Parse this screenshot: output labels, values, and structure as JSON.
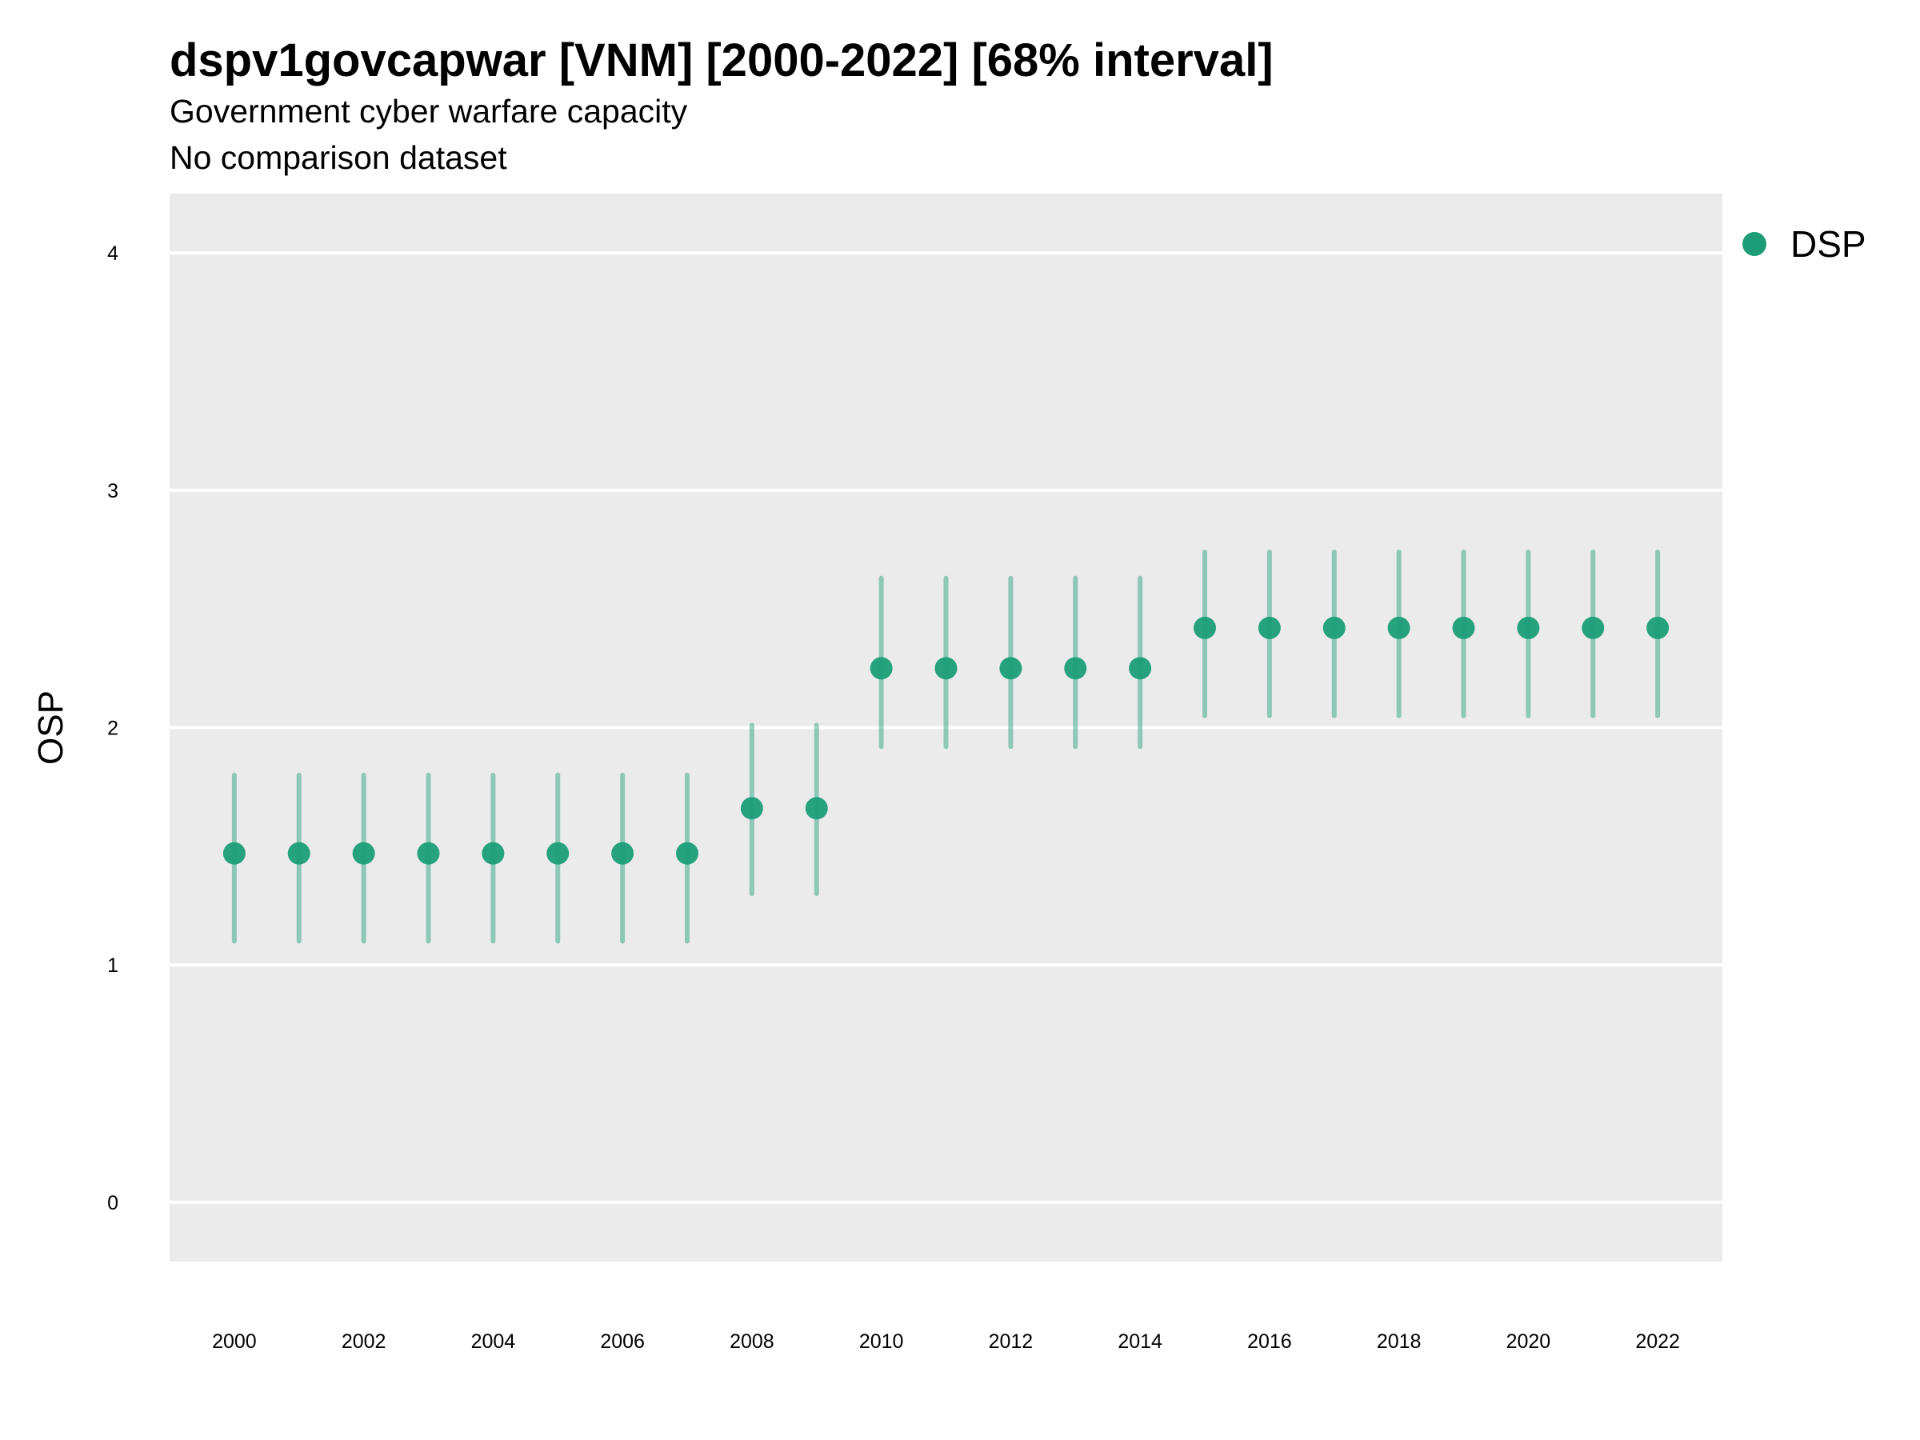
{
  "title": "dspv1govcapwar [VNM] [2000-2022] [68% interval]",
  "subtitle_lines": [
    "Government cyber warfare capacity",
    "No comparison dataset"
  ],
  "colors": {
    "panel": "#EBEBEB",
    "grid": "#FFFFFF",
    "point": "#1B9E77"
  },
  "legend": {
    "label": "DSP"
  },
  "chart_data": {
    "type": "scatter",
    "title": "dspv1govcapwar [VNM] [2000-2022] [68% interval]",
    "ylabel": "OSP",
    "xlabel": "",
    "ylim": [
      -0.25,
      4.25
    ],
    "y_ticks": [
      0,
      1,
      2,
      3,
      4
    ],
    "x_ticks": [
      2000,
      2002,
      2004,
      2006,
      2008,
      2010,
      2012,
      2014,
      2016,
      2018,
      2020,
      2022
    ],
    "xlim": [
      1999,
      2023
    ],
    "grid": true,
    "legend_position": "right",
    "series": [
      {
        "name": "DSP",
        "x": [
          2000,
          2001,
          2002,
          2003,
          2004,
          2005,
          2006,
          2007,
          2008,
          2009,
          2010,
          2011,
          2012,
          2013,
          2014,
          2015,
          2016,
          2017,
          2018,
          2019,
          2020,
          2021,
          2022
        ],
        "y": [
          1.47,
          1.47,
          1.47,
          1.47,
          1.47,
          1.47,
          1.47,
          1.47,
          1.66,
          1.66,
          2.25,
          2.25,
          2.25,
          2.25,
          2.25,
          2.42,
          2.42,
          2.42,
          2.42,
          2.42,
          2.42,
          2.42,
          2.42
        ],
        "lower": [
          1.1,
          1.1,
          1.1,
          1.1,
          1.1,
          1.1,
          1.1,
          1.1,
          1.3,
          1.3,
          1.92,
          1.92,
          1.92,
          1.92,
          1.92,
          2.05,
          2.05,
          2.05,
          2.05,
          2.05,
          2.05,
          2.05,
          2.05
        ],
        "upper": [
          1.8,
          1.8,
          1.8,
          1.8,
          1.8,
          1.8,
          1.8,
          1.8,
          2.01,
          2.01,
          2.63,
          2.63,
          2.63,
          2.63,
          2.63,
          2.74,
          2.74,
          2.74,
          2.74,
          2.74,
          2.74,
          2.74,
          2.74
        ]
      }
    ]
  }
}
